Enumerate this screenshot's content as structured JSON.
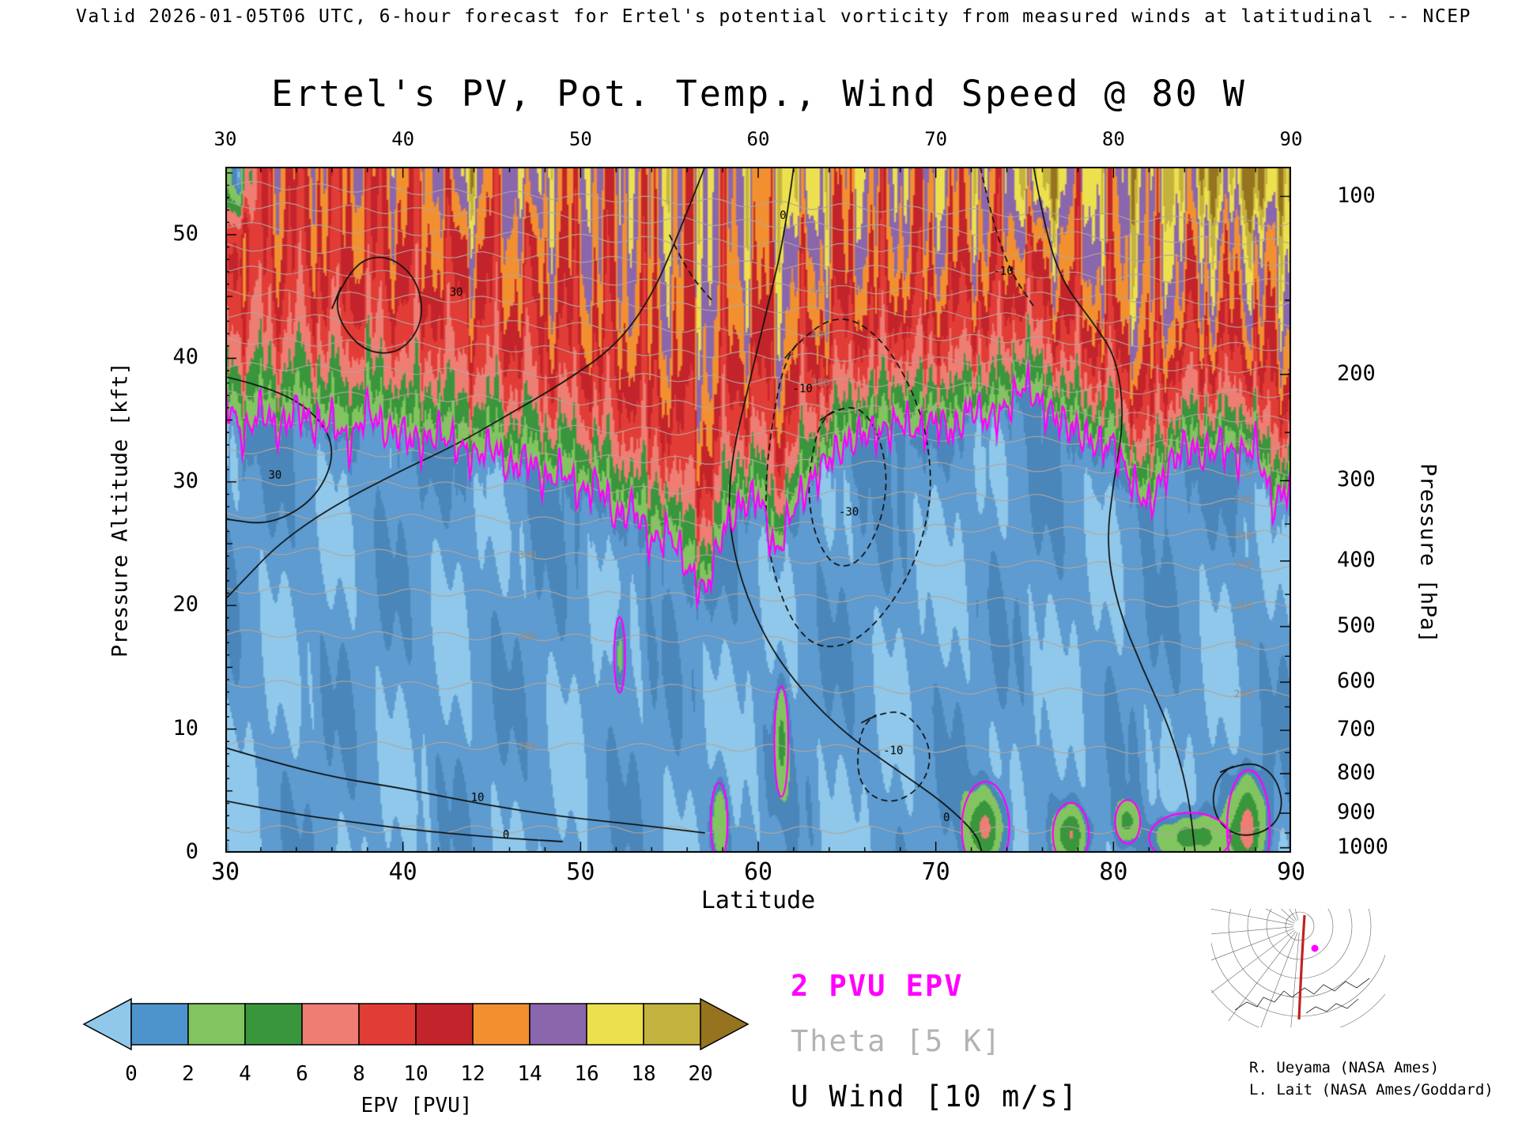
{
  "header": {
    "valid_line": "Valid 2026-01-05T06 UTC, 6-hour forecast for Ertel's potential vorticity from measured winds at latitudinal -- NCEP"
  },
  "title": "Ertel's PV, Pot. Temp., Wind Speed @ 80 W",
  "axes": {
    "x": {
      "label": "Latitude",
      "min": 30,
      "max": 90,
      "ticks": [
        30,
        40,
        50,
        60,
        70,
        80,
        90
      ],
      "minor_step": 2
    },
    "y_left": {
      "label": "Pressure Altitude [kft]",
      "min": 0,
      "max": 55.5,
      "ticks": [
        0,
        10,
        20,
        30,
        40,
        50
      ]
    },
    "y_right": {
      "label": "Pressure [hPa]",
      "ticks": [
        {
          "label": "100",
          "kft": 53.1
        },
        {
          "label": "200",
          "kft": 38.7
        },
        {
          "label": "300",
          "kft": 30.1
        },
        {
          "label": "400",
          "kft": 23.6
        },
        {
          "label": "500",
          "kft": 18.3
        },
        {
          "label": "600",
          "kft": 13.8
        },
        {
          "label": "700",
          "kft": 9.9
        },
        {
          "label": "800",
          "kft": 6.4
        },
        {
          "label": "900",
          "kft": 3.2
        },
        {
          "label": "1000",
          "kft": 0.4
        }
      ],
      "minor_kft": [
        44.7,
        34.0,
        26.6,
        20.9,
        15.9,
        11.8,
        8.1,
        4.8,
        1.6
      ]
    }
  },
  "colorbar": {
    "label": "EPV [PVU]",
    "ticks": [
      0,
      2,
      4,
      6,
      8,
      10,
      12,
      14,
      16,
      18,
      20
    ],
    "colors": [
      "#8fc8ea",
      "#4d94cc",
      "#82c45f",
      "#39963c",
      "#ee7d74",
      "#e23c36",
      "#c3232a",
      "#f29030",
      "#8a66ad",
      "#ece04f",
      "#c4b23e",
      "#96731f"
    ]
  },
  "legend": {
    "items": [
      {
        "label": "2 PVU EPV",
        "color": "#ff00ff"
      },
      {
        "label": "Theta [5 K]",
        "color": "#b3b3b3"
      },
      {
        "label": "U Wind [10 m/s]",
        "color": "#000000"
      }
    ]
  },
  "inset": {
    "credit1": "R. Ueyama (NASA Ames)",
    "credit2": "L. Lait (NASA Ames/Goddard)"
  },
  "chart_data": {
    "type": "heatmap",
    "title": "Ertel's PV, Pot. Temp., Wind Speed @ 80 W",
    "xlabel": "Latitude",
    "x_range": [
      30,
      90
    ],
    "ylabel_left": "Pressure Altitude [kft]",
    "y_range_kft": [
      0,
      55.5
    ],
    "ylabel_right": "Pressure [hPa]",
    "fill_field": "Ertel's potential vorticity [PVU]",
    "fill_levels": [
      0,
      2,
      4,
      6,
      8,
      10,
      12,
      14,
      16,
      18,
      20
    ],
    "overlays": [
      {
        "name": "2 PVU EPV",
        "style": "thick magenta contour"
      },
      {
        "name": "Theta",
        "style": "thin gray contours",
        "interval_K": 5
      },
      {
        "name": "U Wind",
        "style": "black contours, dashed where negative",
        "interval_m_s": 10
      }
    ],
    "tropopause_2pvu": {
      "lat_start": 30,
      "lat_step": 1,
      "alt_kft": [
        37,
        33.5,
        36,
        34,
        36,
        34.5,
        35,
        33,
        36,
        34,
        34,
        33,
        34,
        33,
        32,
        33,
        31,
        32,
        30,
        31,
        29,
        30,
        27,
        28,
        25,
        26,
        23,
        21,
        26,
        28,
        29,
        24,
        28,
        30,
        32,
        33,
        34,
        34,
        35,
        34,
        35,
        34,
        36,
        35,
        36,
        38,
        36,
        35,
        34,
        33,
        33,
        30,
        28,
        31,
        33,
        32,
        33,
        32,
        33,
        28,
        30
      ]
    },
    "wind_contours": {
      "solid": [
        {
          "points": [
            [
              62,
              55.5
            ],
            [
              61.5,
              50
            ],
            [
              60.5,
              44
            ],
            [
              59.5,
              38
            ],
            [
              58.5,
              32
            ],
            [
              58.3,
              27
            ],
            [
              59,
              22
            ],
            [
              60.5,
              17
            ],
            [
              62.5,
              13
            ],
            [
              65,
              9.5
            ],
            [
              68,
              6.5
            ],
            [
              70.5,
              4
            ],
            [
              72.3,
              1.5
            ],
            [
              72.6,
              0
            ]
          ],
          "closed": false
        },
        {
          "points": [
            [
              57,
              55.5
            ],
            [
              55.5,
              50
            ],
            [
              54,
              45
            ],
            [
              52,
              41
            ],
            [
              49,
              38
            ],
            [
              46,
              35.5
            ],
            [
              43,
              33
            ],
            [
              40,
              31
            ],
            [
              36,
              28
            ],
            [
              33,
              25
            ],
            [
              31,
              22
            ],
            [
              30,
              20.5
            ]
          ],
          "closed": false
        },
        {
          "points": [
            [
              36,
              44
            ],
            [
              37,
              47.5
            ],
            [
              39,
              48.5
            ],
            [
              40.8,
              46.5
            ],
            [
              41.2,
              43
            ],
            [
              39.8,
              40.3
            ],
            [
              37.6,
              40.6
            ]
          ],
          "closed": true
        },
        {
          "points": [
            [
              30,
              38.5
            ],
            [
              33,
              37.5
            ],
            [
              35.5,
              35
            ],
            [
              36.2,
              32
            ],
            [
              35,
              28.5
            ],
            [
              32.5,
              26.5
            ],
            [
              30,
              27
            ]
          ],
          "closed": false
        },
        {
          "points": [
            [
              75.5,
              55.5
            ],
            [
              76.2,
              50
            ],
            [
              77.2,
              46
            ],
            [
              78.8,
              43
            ],
            [
              80.2,
              40
            ],
            [
              80.6,
              35
            ],
            [
              80,
              30
            ],
            [
              79.6,
              25
            ],
            [
              80.2,
              20
            ],
            [
              81.6,
              15
            ],
            [
              83.2,
              10
            ],
            [
              84.2,
              5
            ],
            [
              84.6,
              0
            ]
          ],
          "closed": false
        },
        {
          "points": [
            [
              30,
              8.5
            ],
            [
              33,
              7.2
            ],
            [
              36.5,
              6
            ],
            [
              40,
              5.2
            ],
            [
              44.5,
              3.9
            ],
            [
              49,
              2.9
            ],
            [
              53,
              2.3
            ],
            [
              57,
              1.6
            ]
          ],
          "closed": false
        },
        {
          "points": [
            [
              30,
              4.2
            ],
            [
              33.5,
              3.2
            ],
            [
              37.5,
              2.4
            ],
            [
              41.5,
              1.7
            ],
            [
              45.5,
              1.2
            ],
            [
              49,
              0.9
            ]
          ],
          "closed": false
        },
        {
          "points": [
            [
              86,
              6.5
            ],
            [
              87.5,
              7.5
            ],
            [
              89,
              6.5
            ],
            [
              89.6,
              4
            ],
            [
              89,
              2
            ],
            [
              87.3,
              1.2
            ],
            [
              86,
              2.2
            ],
            [
              85.5,
              4.3
            ]
          ],
          "closed": true
        }
      ],
      "dashed": [
        {
          "points": [
            [
              61.5,
              40
            ],
            [
              63,
              42.5
            ],
            [
              65,
              43.5
            ],
            [
              67,
              41.5
            ],
            [
              68.5,
              38
            ],
            [
              69.5,
              34
            ],
            [
              69.8,
              29
            ],
            [
              69,
              24
            ],
            [
              67.5,
              20
            ],
            [
              65.5,
              17
            ],
            [
              63.5,
              16.5
            ],
            [
              62.2,
              18
            ],
            [
              61.2,
              21
            ],
            [
              60.5,
              25
            ],
            [
              60.4,
              30
            ],
            [
              60.8,
              35
            ]
          ],
          "closed": true
        },
        {
          "points": [
            [
              63.5,
              35
            ],
            [
              65,
              36.5
            ],
            [
              66.5,
              35
            ],
            [
              67.3,
              31
            ],
            [
              67,
              27
            ],
            [
              65.8,
              23.5
            ],
            [
              64.3,
              23
            ],
            [
              63.2,
              25.5
            ],
            [
              62.8,
              29
            ],
            [
              63,
              32
            ]
          ],
          "closed": true
        },
        {
          "points": [
            [
              65.8,
              10.5
            ],
            [
              67.5,
              11.8
            ],
            [
              69,
              10.5
            ],
            [
              69.8,
              8
            ],
            [
              69.3,
              5.5
            ],
            [
              67.8,
              4
            ],
            [
              66.3,
              4.5
            ],
            [
              65.5,
              6.5
            ]
          ],
          "closed": true
        },
        {
          "points": [
            [
              72.5,
              55.5
            ],
            [
              73.2,
              51
            ],
            [
              74.2,
              47
            ],
            [
              75.6,
              44
            ]
          ],
          "closed": false
        },
        {
          "points": [
            [
              55,
              50
            ],
            [
              56,
              47
            ],
            [
              57.5,
              44.5
            ]
          ],
          "closed": false
        }
      ],
      "labels": [
        {
          "text": "30",
          "lat": 43,
          "kft": 45.3
        },
        {
          "text": "30",
          "lat": 32.8,
          "kft": 30.5
        },
        {
          "text": "0",
          "lat": 61.4,
          "kft": 51.5
        },
        {
          "text": "-10",
          "lat": 62.5,
          "kft": 37.5
        },
        {
          "text": "-30",
          "lat": 65.1,
          "kft": 27.5
        },
        {
          "text": "-10",
          "lat": 67.6,
          "kft": 8.2
        },
        {
          "text": "-10",
          "lat": 73.8,
          "kft": 47
        },
        {
          "text": "10",
          "lat": 44.2,
          "kft": 4.4
        },
        {
          "text": "0",
          "lat": 45.8,
          "kft": 1.4
        },
        {
          "text": "0",
          "lat": 70.6,
          "kft": 2.8
        }
      ]
    },
    "theta_labels": [
      {
        "value": 290,
        "lat": 87.3
      },
      {
        "value": 300,
        "lat": 87.3
      },
      {
        "value": 310,
        "lat": 87.3
      },
      {
        "value": 320,
        "lat": 87.3
      },
      {
        "value": 330,
        "lat": 87.3
      },
      {
        "value": 340,
        "lat": 87.3
      },
      {
        "value": 350,
        "lat": 87.3
      },
      {
        "value": 360,
        "lat": 87.3
      },
      {
        "value": 380,
        "lat": 63.5
      },
      {
        "value": 400,
        "lat": 63.5
      },
      {
        "value": 420,
        "lat": 63.5
      },
      {
        "value": 280,
        "lat": 47
      },
      {
        "value": 300,
        "lat": 47
      },
      {
        "value": 320,
        "lat": 47
      }
    ],
    "low_level_pv_features": [
      [
        72.8,
        2,
        1.0,
        2.8,
        6,
        true
      ],
      [
        77.6,
        1.5,
        0.8,
        2,
        5,
        true
      ],
      [
        80.8,
        2.5,
        0.6,
        1.5,
        4,
        true
      ],
      [
        84.3,
        1.2,
        1.8,
        1.6,
        5,
        true
      ],
      [
        87.6,
        2,
        0.9,
        3.5,
        6,
        true
      ],
      [
        61.3,
        9,
        0.35,
        4,
        3.5,
        true
      ],
      [
        52.2,
        16,
        0.3,
        3,
        2.8,
        true
      ],
      [
        57.8,
        2.5,
        0.45,
        3,
        3,
        true
      ],
      [
        30.6,
        55,
        0.8,
        4,
        -12,
        false
      ],
      [
        76,
        55,
        1.2,
        4,
        5,
        false
      ],
      [
        88.5,
        55,
        1,
        4,
        4,
        false
      ],
      [
        62.5,
        55,
        0.8,
        5,
        4,
        false
      ],
      [
        43.5,
        55,
        0.9,
        4,
        4,
        false
      ],
      [
        47.2,
        55,
        0.7,
        4,
        4,
        false
      ],
      [
        86,
        55,
        2.5,
        3.5,
        3,
        false
      ]
    ],
    "render_hints": {
      "tropo_shades": [
        "#93cbee",
        "#5d9bd0",
        "#4a86ba"
      ],
      "theta_color": "#b3a69b",
      "wind_color": "#111111",
      "pv2_color": "#ff00ff"
    }
  }
}
